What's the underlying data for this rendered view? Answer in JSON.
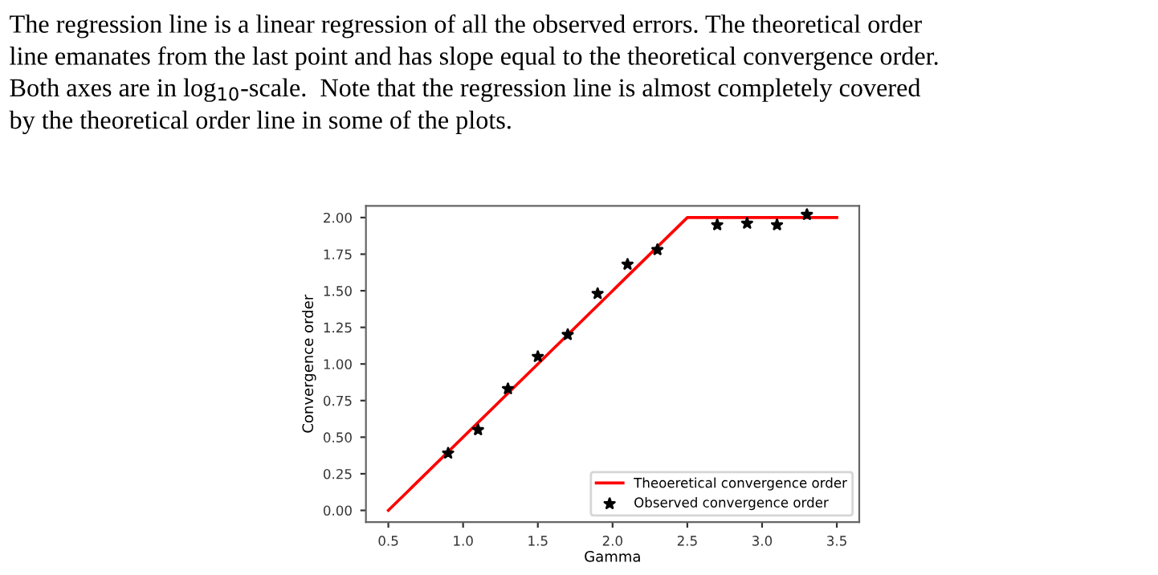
{
  "chart_data": {
    "type": "scatter",
    "annotations": [
      "The regression line is a linear regression of all the observed errors. The theoretical order\nline emanates from the last point and has slope equal to the theoretical convergence order.\nBoth axes are in log$_{10}$-scale.  Note that the regression line is almost completely covered\nby the theoretical order line in some of the plots."
    ],
    "xlabel": "Gamma",
    "ylabel": "Convergence order",
    "series": [
      {
        "name": "Theoeretical convergence order",
        "type": "line",
        "color": "#ff0000",
        "marker": "none",
        "x": [
          0.5,
          2.5,
          3.5
        ],
        "values": [
          0,
          2,
          2
        ]
      },
      {
        "name": "Observed convergence order",
        "color": "#000000",
        "marker": "star",
        "x": [
          0.9,
          1.1,
          1.3,
          1.5,
          1.7,
          1.9,
          2.1,
          2.3,
          2.7,
          2.9,
          3.1,
          3.3
        ],
        "values": [
          0.39,
          0.55,
          0.83,
          1.05,
          1.2,
          1.48,
          1.68,
          1.78,
          1.95,
          1.96,
          1.95,
          2.02
        ]
      }
    ],
    "xlim": [
      0.35,
      3.65
    ],
    "ylim": [
      -0.08,
      2.08
    ],
    "xticks": [
      {
        "value": 0.5,
        "label": "0.5"
      },
      {
        "value": 1.0,
        "label": "1.0"
      },
      {
        "value": 1.5,
        "label": "1.5"
      },
      {
        "value": 2.0,
        "label": "2.0"
      },
      {
        "value": 2.5,
        "label": "2.5"
      },
      {
        "value": 3.0,
        "label": "3.0"
      },
      {
        "value": 3.5,
        "label": "3.5"
      }
    ],
    "yticks": [
      {
        "value": 0,
        "label": "0.00"
      },
      {
        "value": 0.25,
        "label": "0.25"
      },
      {
        "value": 0.5,
        "label": "0.50"
      },
      {
        "value": 0.75,
        "label": "0.75"
      },
      {
        "value": 1.0,
        "label": "1.00"
      },
      {
        "value": 1.25,
        "label": "1.25"
      },
      {
        "value": 1.5,
        "label": "1.50"
      },
      {
        "value": 1.75,
        "label": "1.75"
      },
      {
        "value": 2.0,
        "label": "2.00"
      }
    ],
    "grid": false,
    "legend": "bottom right"
  }
}
